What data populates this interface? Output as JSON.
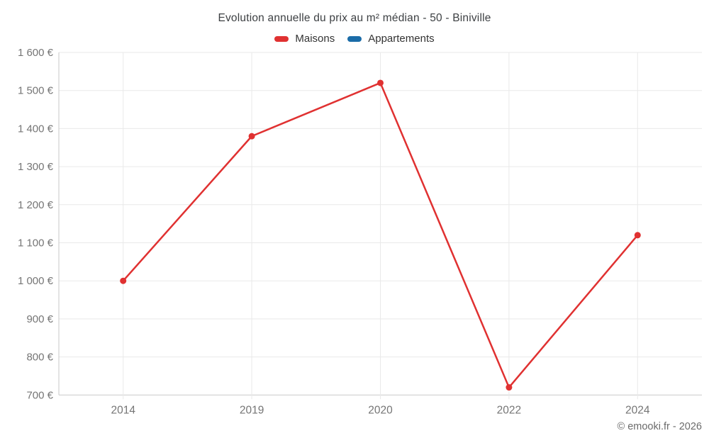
{
  "header": {
    "title": "Evolution annuelle du prix au m² médian - 50 - Biniville"
  },
  "legend": {
    "items": [
      {
        "label": "Maisons",
        "color": "#e03131"
      },
      {
        "label": "Appartements",
        "color": "#1b6ca8"
      }
    ]
  },
  "footer": {
    "copyright": "© emooki.fr - 2026"
  },
  "chart_data": {
    "type": "line",
    "title": "Evolution annuelle du prix au m² médian - 50 - Biniville",
    "categories": [
      "2014",
      "2019",
      "2020",
      "2022",
      "2024"
    ],
    "series": [
      {
        "name": "Maisons",
        "color": "#e03131",
        "values": [
          1000,
          1380,
          1520,
          720,
          1120
        ]
      },
      {
        "name": "Appartements",
        "color": "#1b6ca8",
        "values": []
      }
    ],
    "xlabel": "",
    "ylabel": "",
    "ylim": [
      700,
      1600
    ],
    "y_step": 100,
    "y_tick_labels": [
      "700 €",
      "800 €",
      "900 €",
      "1 000 €",
      "1 100 €",
      "1 200 €",
      "1 300 €",
      "1 400 €",
      "1 500 €",
      "1 600 €"
    ],
    "currency_suffix": "€",
    "grid": true,
    "legend_position": "top"
  }
}
